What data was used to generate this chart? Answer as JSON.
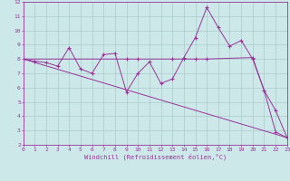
{
  "xlabel": "Windchill (Refroidissement éolien,°C)",
  "xlim": [
    0,
    23
  ],
  "ylim": [
    2,
    12
  ],
  "xticks": [
    0,
    1,
    2,
    3,
    4,
    5,
    6,
    7,
    8,
    9,
    10,
    11,
    12,
    13,
    14,
    15,
    16,
    17,
    18,
    19,
    20,
    21,
    22,
    23
  ],
  "yticks": [
    2,
    3,
    4,
    5,
    6,
    7,
    8,
    9,
    10,
    11,
    12
  ],
  "background_color": "#cce8e8",
  "grid_color": "#aacccc",
  "line_color": "#993399",
  "line1_x": [
    0,
    1,
    2,
    3,
    4,
    5,
    6,
    7,
    8,
    9,
    10,
    11,
    12,
    13,
    14,
    15,
    16,
    17,
    18,
    19,
    20,
    21,
    22,
    23
  ],
  "line1_y": [
    8.0,
    7.85,
    7.75,
    7.5,
    8.8,
    7.3,
    7.0,
    8.3,
    8.4,
    5.7,
    7.0,
    7.8,
    6.3,
    6.6,
    8.1,
    9.5,
    11.6,
    10.2,
    8.9,
    9.3,
    8.0,
    5.8,
    4.4,
    2.5
  ],
  "line2_x": [
    0,
    9,
    10,
    13,
    14,
    15,
    16,
    20,
    21,
    22,
    23
  ],
  "line2_y": [
    8.0,
    8.0,
    8.0,
    8.0,
    8.0,
    8.0,
    8.0,
    8.1,
    5.8,
    2.9,
    2.5
  ],
  "line3_x": [
    0,
    23
  ],
  "line3_y": [
    8.0,
    2.5
  ]
}
